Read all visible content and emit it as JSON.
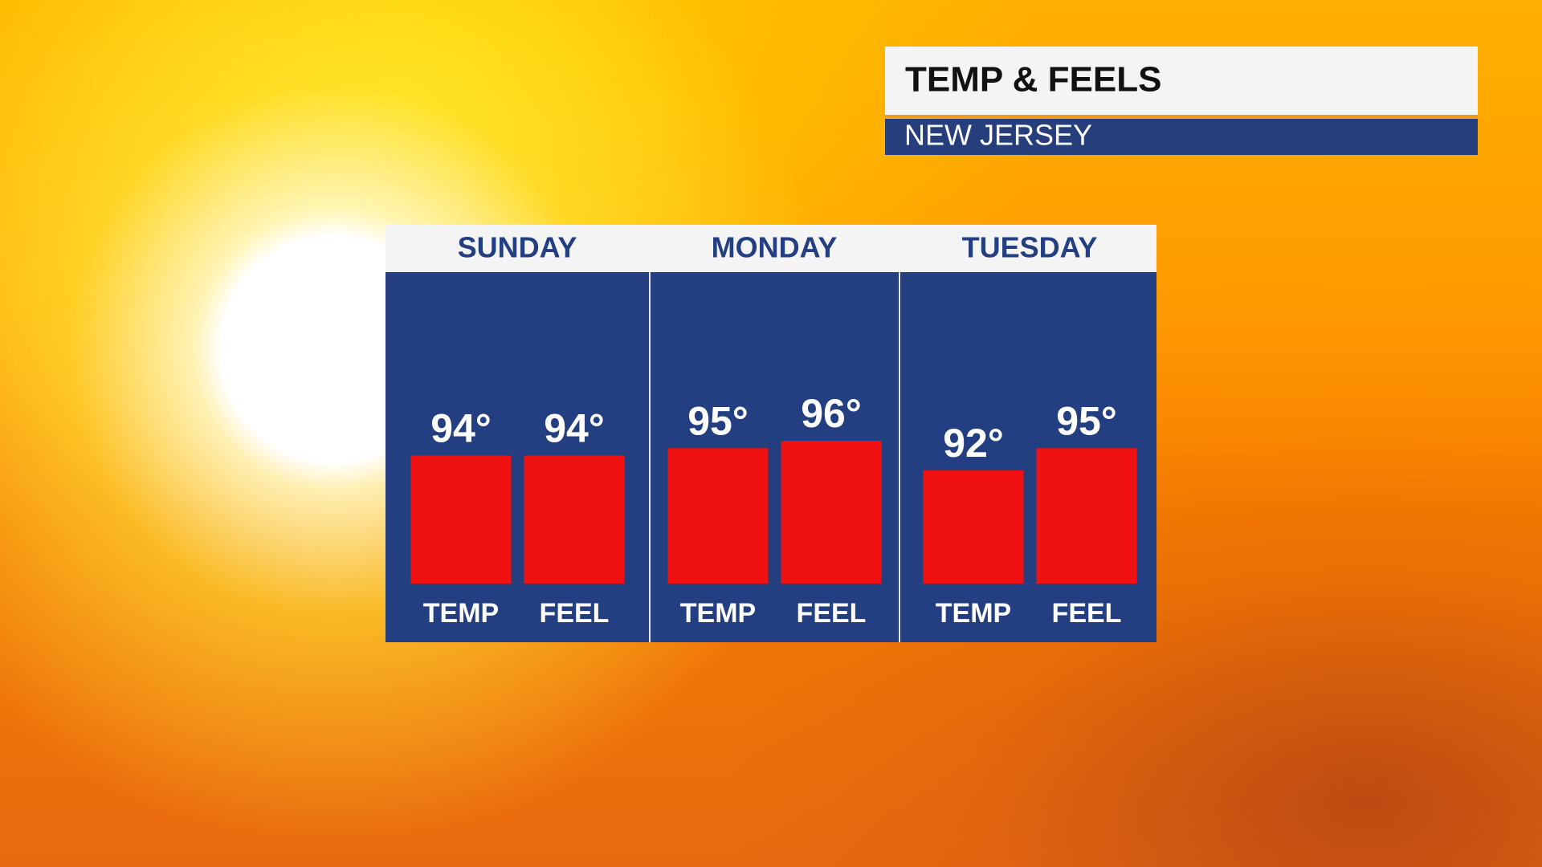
{
  "header": {
    "title": "TEMP & FEELS",
    "subtitle": "NEW JERSEY"
  },
  "chart_data": {
    "type": "bar",
    "categories": [
      "SUNDAY",
      "MONDAY",
      "TUESDAY"
    ],
    "series": [
      {
        "name": "TEMP",
        "color": "#f01212",
        "values": [
          94,
          95,
          92
        ],
        "value_labels": [
          "94°",
          "95°",
          "92°"
        ]
      },
      {
        "name": "FEEL",
        "color": "#f01212",
        "values": [
          94,
          96,
          95
        ],
        "value_labels": [
          "94°",
          "96°",
          "95°"
        ]
      }
    ]
  }
}
